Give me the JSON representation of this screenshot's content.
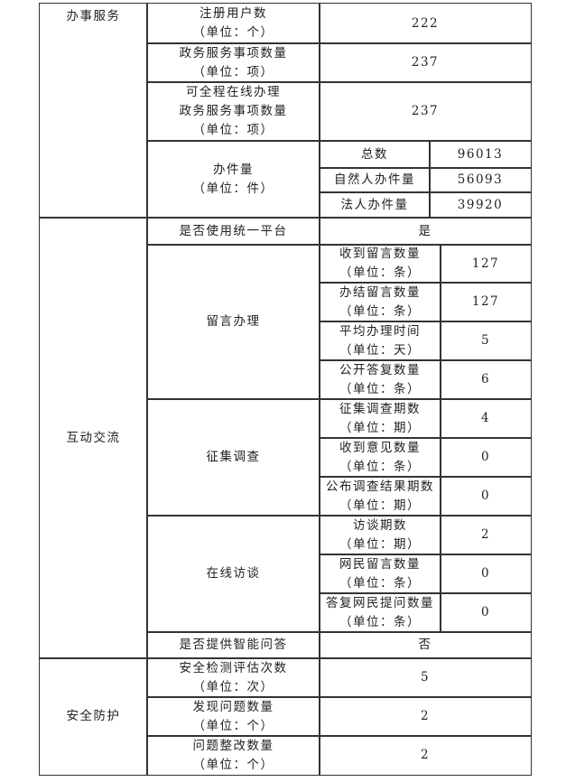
{
  "sections": {
    "service": {
      "title": "办事服务",
      "registered_users": {
        "label": "注册用户数\n（单位：个）",
        "value": "222"
      },
      "service_items": {
        "label": "政务服务事项数量\n（单位：项）",
        "value": "237"
      },
      "online_items": {
        "label": "可全程在线办理\n政务服务事项数量\n（单位：项）",
        "value": "237"
      },
      "cases": {
        "label": "办件量\n（单位：件）",
        "rows": [
          {
            "label": "总数",
            "value": "96013"
          },
          {
            "label": "自然人办件量",
            "value": "56093"
          },
          {
            "label": "法人办件量",
            "value": "39920"
          }
        ]
      }
    },
    "interaction": {
      "title": "互动交流",
      "unified_platform": {
        "label": "是否使用统一平台",
        "value": "是"
      },
      "messages": {
        "label": "留言办理",
        "rows": [
          {
            "label": "收到留言数量\n（单位：条）",
            "value": "127"
          },
          {
            "label": "办结留言数量\n（单位：条）",
            "value": "127"
          },
          {
            "label": "平均办理时间\n（单位：天）",
            "value": "5"
          },
          {
            "label": "公开答复数量\n（单位：条）",
            "value": "6"
          }
        ]
      },
      "survey": {
        "label": "征集调查",
        "rows": [
          {
            "label": "征集调查期数\n（单位：期）",
            "value": "4"
          },
          {
            "label": "收到意见数量\n（单位：条）",
            "value": "0"
          },
          {
            "label": "公布调查结果期数\n（单位：期）",
            "value": "0"
          }
        ]
      },
      "interview": {
        "label": "在线访谈",
        "rows": [
          {
            "label": "访谈期数\n（单位：期）",
            "value": "2"
          },
          {
            "label": "网民留言数量\n（单位：条）",
            "value": "0"
          },
          {
            "label": "答复网民提问数量\n（单位：条）",
            "value": "0"
          }
        ]
      },
      "smart_qa": {
        "label": "是否提供智能问答",
        "value": "否"
      }
    },
    "security": {
      "title": "安全防护",
      "rows": [
        {
          "label": "安全检测评估次数\n（单位：次）",
          "value": "5"
        },
        {
          "label": "发现问题数量\n（单位：个）",
          "value": "2"
        },
        {
          "label": "问题整改数量\n（单位：个）",
          "value": "2"
        }
      ]
    }
  }
}
